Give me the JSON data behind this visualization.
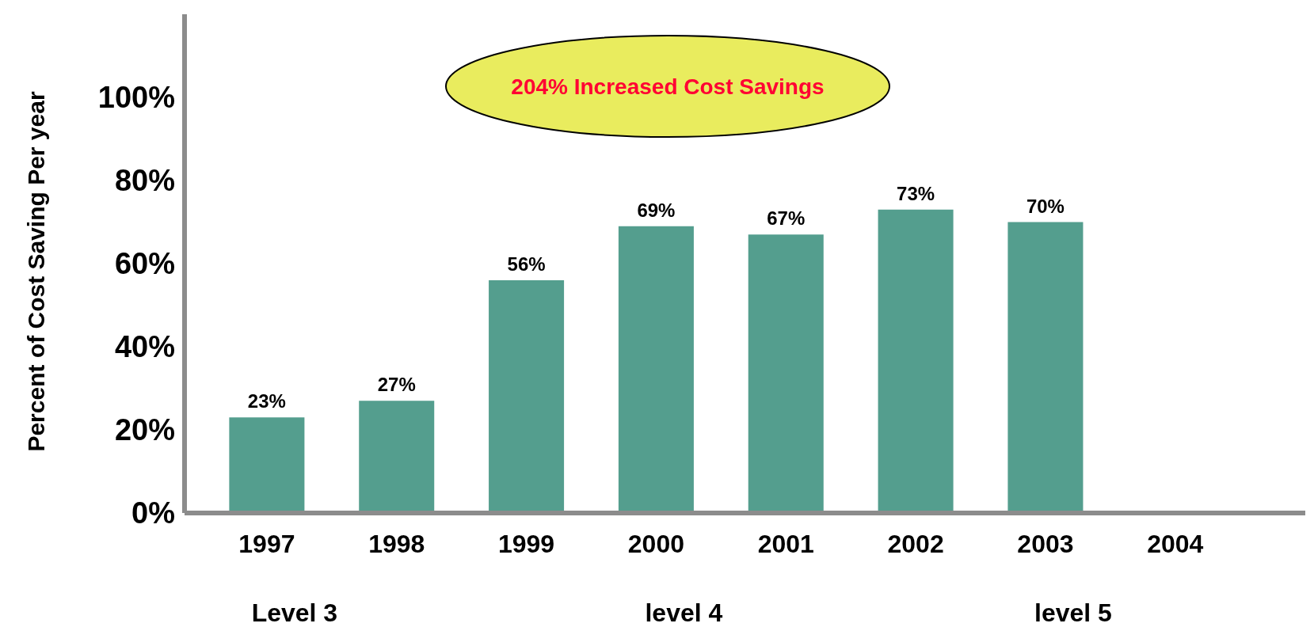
{
  "chart_data": {
    "type": "bar",
    "ylabel": "Percent of Cost Saving Per year",
    "categories": [
      "1997",
      "1998",
      "1999",
      "2000",
      "2001",
      "2002",
      "2003",
      "2004"
    ],
    "values": [
      23,
      27,
      56,
      69,
      67,
      73,
      70,
      null
    ],
    "color": "#549e8e",
    "value_labels": [
      "23%",
      "27%",
      "56%",
      "69%",
      "67%",
      "73%",
      "70%",
      null
    ],
    "ylim": [
      0,
      120
    ],
    "yticks": [
      {
        "value": 0,
        "label": "0%"
      },
      {
        "value": 20,
        "label": "20%"
      },
      {
        "value": 40,
        "label": "40%"
      },
      {
        "value": 60,
        "label": "60%"
      },
      {
        "value": 80,
        "label": "80%"
      },
      {
        "value": 100,
        "label": "100%"
      }
    ],
    "grid": false,
    "annotations": [
      "204% Increased Cost Savings",
      "Level 3",
      "level 4",
      "level 5"
    ]
  }
}
